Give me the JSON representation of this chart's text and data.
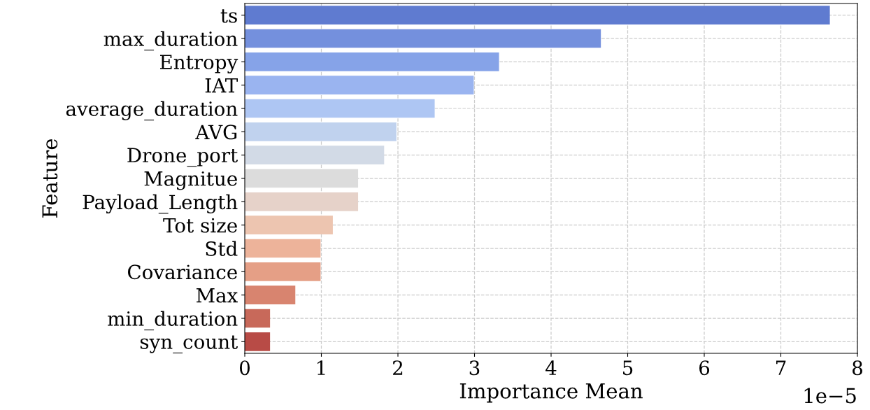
{
  "chart_data": {
    "type": "bar",
    "orientation": "horizontal",
    "xlabel": "Importance Mean",
    "ylabel": "Feature",
    "categories": [
      "ts",
      "max_duration",
      "Entropy",
      "IAT",
      "average_duration",
      "AVG",
      "Drone_port",
      "Magnitue",
      "Payload_Length",
      "Tot size",
      "Std",
      "Covariance",
      "Max",
      "min_duration",
      "syn_count"
    ],
    "values": [
      7.64,
      4.65,
      3.32,
      2.99,
      2.48,
      1.98,
      1.82,
      1.48,
      1.48,
      1.15,
      0.99,
      0.99,
      0.66,
      0.33,
      0.33
    ],
    "colors": [
      "#5f7bd0",
      "#7490dd",
      "#86a3e8",
      "#9ab4f0",
      "#aec6f3",
      "#c0d2ee",
      "#d2dae6",
      "#dcdcdc",
      "#e6d2c9",
      "#edc5b0",
      "#edb39a",
      "#e59f86",
      "#d8846f",
      "#c8695a",
      "#b84b46"
    ],
    "xlim": [
      0,
      8
    ],
    "xticks": [
      0,
      1,
      2,
      3,
      4,
      5,
      6,
      7,
      8
    ],
    "annotations": [
      "1e−5"
    ],
    "grid": true,
    "line_style": "dashed"
  }
}
